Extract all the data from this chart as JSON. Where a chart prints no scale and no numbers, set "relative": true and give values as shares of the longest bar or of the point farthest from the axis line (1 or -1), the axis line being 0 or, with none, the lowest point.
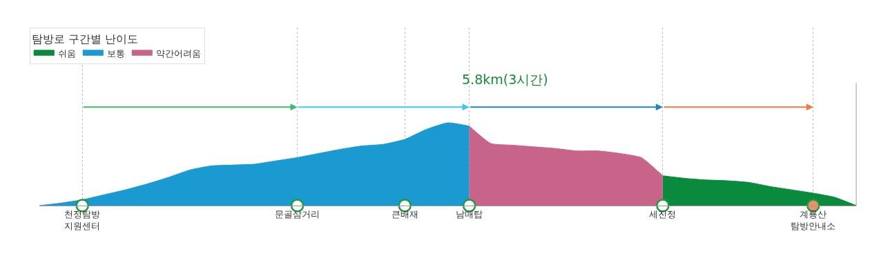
{
  "chart_data": {
    "type": "area",
    "relative": true,
    "annotations": [
      "5.8km(3시간)"
    ],
    "legend_title": "탐방로 구간별 난이도",
    "legend": "top left",
    "grid": "x",
    "categories": [
      null,
      null,
      "천정탐방\n지원센터",
      null,
      null,
      null,
      null,
      null,
      null,
      null,
      null,
      null,
      "문골삼거리",
      null,
      null,
      null,
      null,
      "큰배재",
      null,
      null,
      "남매탑",
      null,
      null,
      null,
      null,
      null,
      null,
      null,
      null,
      "세진정",
      null,
      null,
      null,
      null,
      null,
      null,
      "계룡산\n탐방안내소",
      null,
      null
    ],
    "series": [
      {
        "name": "쉬움",
        "color": "#0a8a3c",
        "values": [
          null,
          null,
          null,
          null,
          null,
          null,
          null,
          null,
          null,
          null,
          null,
          null,
          null,
          null,
          null,
          null,
          null,
          null,
          null,
          null,
          null,
          null,
          null,
          null,
          null,
          null,
          null,
          null,
          null,
          0.36,
          0.33,
          0.31,
          0.3,
          0.28,
          0.23,
          0.19,
          0.15,
          0.1,
          0
        ]
      },
      {
        "name": "보통",
        "color": "#1a9ad0",
        "values": [
          0,
          0.03,
          0.07,
          0.13,
          0.19,
          0.26,
          0.34,
          0.43,
          0.48,
          0.49,
          0.5,
          0.54,
          0.58,
          0.63,
          0.68,
          0.72,
          0.74,
          0.8,
          0.92,
          1,
          0.96,
          null,
          null,
          null,
          null,
          null,
          null,
          null,
          null,
          null,
          null,
          null,
          null,
          null,
          null,
          null,
          null,
          null,
          null
        ]
      },
      {
        "name": "약간어려움",
        "color": "#c8638a",
        "values": [
          null,
          null,
          null,
          null,
          null,
          null,
          null,
          null,
          null,
          null,
          null,
          null,
          null,
          null,
          null,
          null,
          null,
          null,
          null,
          null,
          0.96,
          0.75,
          0.73,
          0.71,
          0.69,
          0.66,
          0.66,
          0.63,
          0.58,
          0.36,
          null,
          null,
          null,
          null,
          null,
          null,
          null,
          null,
          null
        ]
      },
      {
        "type": "scatter",
        "marker": "circle",
        "values": [
          null,
          null,
          0,
          null,
          null,
          null,
          null,
          null,
          null,
          null,
          null,
          null,
          0,
          null,
          null,
          null,
          null,
          0,
          null,
          null,
          0,
          null,
          null,
          null,
          null,
          null,
          null,
          null,
          null,
          0,
          null,
          null,
          null,
          null,
          null,
          null,
          0,
          null,
          null
        ],
        "colors": [
          null,
          null,
          "#ffffff",
          null,
          null,
          null,
          null,
          null,
          null,
          null,
          null,
          null,
          "#ffffff",
          null,
          null,
          null,
          null,
          "#ffffff",
          null,
          null,
          "#ffffff",
          null,
          null,
          null,
          null,
          null,
          null,
          null,
          null,
          "#ffffff",
          null,
          null,
          null,
          null,
          null,
          null,
          "#f0906a",
          null,
          null
        ]
      }
    ]
  }
}
